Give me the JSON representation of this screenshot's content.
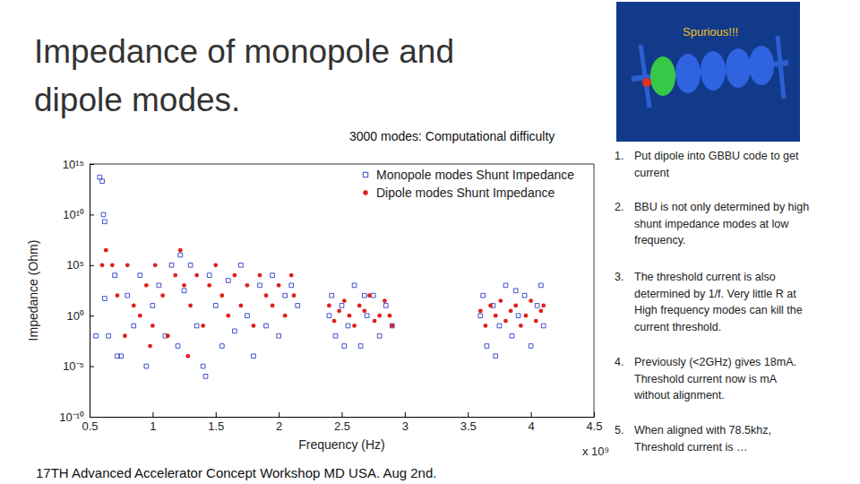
{
  "slide": {
    "title_lines": [
      "Impedance of monopole and",
      "dipole modes."
    ],
    "image_label": "Spurious!!!",
    "note": "3000 modes: Computational difficulty",
    "items": [
      {
        "number": "1.",
        "lines": [
          "Put dipole into GBBU code to get",
          "current"
        ]
      },
      {
        "number": "2.",
        "lines": [
          "BBU is not only determined by high",
          "shunt impedance modes at low",
          "frequency."
        ]
      },
      {
        "number": "3.",
        "lines": [
          "The threshold current is also",
          "determined by 1/f. Very little R at",
          "High frequency modes can kill the",
          "current threshold."
        ]
      },
      {
        "number": "4.",
        "lines": [
          "Previously (<2GHz) gives 18mA.",
          "Threshold current now is mA",
          "without alignment."
        ]
      },
      {
        "number": "5.",
        "lines": [
          "When aligned with 78.5khz,",
          "Threshold current is …"
        ]
      }
    ],
    "footer": "17TH Advanced Accelerator Concept Workshop MD USA. Aug 2nd."
  },
  "chart_data": {
    "type": "scatter",
    "x_label": "Frequency (Hz)",
    "x_axis_note": "x 10⁹",
    "y_label": "Impedance (Ohm)",
    "log": "y",
    "legend": "upper right",
    "xlim": [
      0.5,
      4.5
    ],
    "xticks": [
      0.5,
      1,
      1.5,
      2,
      2.5,
      3,
      3.5,
      4,
      4.5
    ],
    "ylim": [
      1e-10,
      1000000000000000.0
    ],
    "yticks": [
      {
        "value": 1e-10,
        "label": "10⁻¹⁰"
      },
      {
        "value": 1e-05,
        "label": "10⁻⁵"
      },
      {
        "value": 1,
        "label": "10⁰"
      },
      {
        "value": 100000.0,
        "label": "10⁵"
      },
      {
        "value": 10000000000.0,
        "label": "10¹⁰"
      },
      {
        "value": 1000000000000000.0,
        "label": "10¹⁵"
      }
    ],
    "series": [
      {
        "name": "Monopole modes Shunt Impedance",
        "color": "#2f3fc8",
        "marker": "square",
        "x": [
          0.58,
          0.6,
          0.61,
          0.62,
          0.55,
          0.62,
          0.65,
          0.7,
          0.75,
          0.8,
          0.85,
          0.9,
          0.95,
          1.0,
          1.05,
          1.1,
          1.15,
          1.2,
          1.25,
          1.3,
          1.35,
          1.4,
          1.45,
          1.5,
          1.55,
          1.6,
          1.65,
          1.7,
          1.75,
          1.8,
          1.85,
          1.9,
          1.95,
          2.0,
          2.05,
          2.1,
          2.15,
          1.42,
          0.72,
          1.22,
          2.4,
          2.42,
          2.45,
          2.5,
          2.55,
          2.6,
          2.65,
          2.7,
          2.75,
          2.8,
          2.85,
          2.9,
          2.52,
          2.68,
          3.6,
          3.62,
          3.65,
          3.7,
          3.75,
          3.8,
          3.85,
          3.9,
          3.95,
          4.0,
          4.05,
          4.1,
          3.72,
          3.88,
          4.08
        ],
        "values": [
          50000000000000.0,
          20000000000000.0,
          10000000000.0,
          2000000000.0,
          0.01,
          50,
          0.01,
          10000.0,
          0.0001,
          100,
          0.1,
          10000.0,
          1e-05,
          10,
          1000,
          0.01,
          100000.0,
          0.001,
          300,
          100000.0,
          0.1,
          1e-05,
          10000.0,
          10,
          0.001,
          3000,
          0.03,
          100000.0,
          1,
          0.0001,
          1000,
          0.1,
          10000.0,
          0.01,
          100,
          1000,
          10,
          1e-06,
          0.0001,
          1000000.0,
          1,
          100,
          0.01,
          10,
          0.1,
          1000,
          0.001,
          1,
          100,
          0.01,
          10,
          0.1,
          0.001,
          100,
          1,
          100,
          0.001,
          10,
          0.1,
          1000,
          0.01,
          1,
          100,
          0.001,
          10,
          0.1,
          0.0001,
          300,
          1000
        ]
      },
      {
        "name": "Dipole modes Shunt Impedance",
        "color": "#e0201c",
        "marker": "circle",
        "x": [
          0.6,
          0.63,
          0.68,
          0.72,
          0.78,
          0.8,
          0.85,
          0.9,
          0.95,
          1.0,
          1.02,
          1.08,
          1.12,
          1.18,
          1.22,
          1.25,
          1.3,
          1.35,
          1.4,
          1.45,
          1.5,
          1.55,
          1.6,
          1.65,
          1.7,
          1.75,
          1.8,
          1.85,
          1.9,
          1.95,
          2.0,
          2.05,
          2.1,
          2.12,
          1.28,
          0.98,
          2.4,
          2.44,
          2.48,
          2.52,
          2.56,
          2.6,
          2.64,
          2.68,
          2.72,
          2.76,
          2.8,
          2.84,
          2.88,
          2.9,
          3.6,
          3.64,
          3.68,
          3.72,
          3.76,
          3.8,
          3.84,
          3.88,
          3.92,
          3.96,
          4.0,
          4.04,
          4.08,
          4.1
        ],
        "values": [
          100000.0,
          3000000.0,
          100000.0,
          100,
          0.01,
          100000.0,
          10,
          1,
          1000,
          0.1,
          100000.0,
          100,
          0.01,
          10000.0,
          3000000.0,
          1000,
          10,
          10000.0,
          0.1,
          1000,
          100000.0,
          100,
          1,
          10000.0,
          10,
          1000,
          0.1,
          10000.0,
          100,
          10,
          1000,
          1,
          10000.0,
          100,
          0.0001,
          0.001,
          10,
          0.3,
          3,
          30,
          1,
          0.1,
          10,
          3,
          100,
          0.3,
          1,
          30,
          1,
          0.1,
          3,
          0.1,
          10,
          1,
          30,
          0.3,
          3,
          10,
          0.1,
          1,
          30,
          0.3,
          3,
          10
        ]
      }
    ]
  }
}
